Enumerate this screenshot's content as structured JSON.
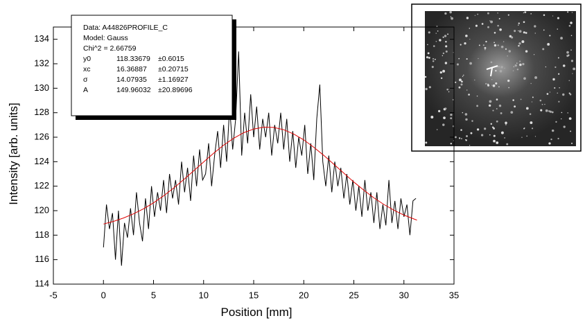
{
  "chart_data": {
    "type": "line",
    "xlabel": "Position [mm]",
    "ylabel": "Intensity [arb. units]",
    "xlim": [
      -5,
      35
    ],
    "xticks": [
      -5,
      0,
      5,
      10,
      15,
      20,
      25,
      30,
      35
    ],
    "ylim": [
      114,
      135
    ],
    "yticks": [
      114,
      116,
      118,
      120,
      122,
      124,
      126,
      128,
      130,
      132,
      134
    ],
    "series": [
      {
        "color": "#000000",
        "x": [
          0,
          0.3,
          0.6,
          0.9,
          1.2,
          1.5,
          1.8,
          2.1,
          2.4,
          2.7,
          3.0,
          3.3,
          3.6,
          3.9,
          4.2,
          4.5,
          4.8,
          5.1,
          5.4,
          5.7,
          6.0,
          6.3,
          6.6,
          6.9,
          7.2,
          7.5,
          7.8,
          8.1,
          8.4,
          8.7,
          9.0,
          9.3,
          9.6,
          9.9,
          10.2,
          10.5,
          10.8,
          11.1,
          11.4,
          11.7,
          12.0,
          12.3,
          12.6,
          12.9,
          13.2,
          13.5,
          13.8,
          14.1,
          14.4,
          14.7,
          15.0,
          15.3,
          15.6,
          15.9,
          16.2,
          16.5,
          16.8,
          17.1,
          17.4,
          17.7,
          18.0,
          18.3,
          18.6,
          18.9,
          19.2,
          19.5,
          19.8,
          20.1,
          20.4,
          20.7,
          21.0,
          21.3,
          21.6,
          21.9,
          22.2,
          22.5,
          22.8,
          23.1,
          23.4,
          23.7,
          24.0,
          24.3,
          24.6,
          24.9,
          25.2,
          25.5,
          25.8,
          26.1,
          26.4,
          26.7,
          27.0,
          27.3,
          27.6,
          27.9,
          28.2,
          28.5,
          28.8,
          29.1,
          29.4,
          29.7,
          30.0,
          30.3,
          30.6,
          30.9,
          31.2
        ],
        "values": [
          117.0,
          120.5,
          118.5,
          119.8,
          116.0,
          120.0,
          115.5,
          119.0,
          117.8,
          120.2,
          118.0,
          121.5,
          119.0,
          117.5,
          121.0,
          118.5,
          122.0,
          119.5,
          121.5,
          120.0,
          122.5,
          119.8,
          123.0,
          121.0,
          122.5,
          120.5,
          124.0,
          121.5,
          123.5,
          120.8,
          124.5,
          122.0,
          125.0,
          122.5,
          123.0,
          125.5,
          122.0,
          124.5,
          126.5,
          123.5,
          127.0,
          124.0,
          128.5,
          125.0,
          127.5,
          133.0,
          124.5,
          128.0,
          125.5,
          129.5,
          126.0,
          128.5,
          125.0,
          127.5,
          126.0,
          128.0,
          124.5,
          127.0,
          125.5,
          128.0,
          125.0,
          127.5,
          124.0,
          126.5,
          123.5,
          126.0,
          124.5,
          127.0,
          123.0,
          125.5,
          122.5,
          127.5,
          130.3,
          124.0,
          122.0,
          124.5,
          121.5,
          124.0,
          122.0,
          123.5,
          121.0,
          123.0,
          120.5,
          122.5,
          120.0,
          122.0,
          119.5,
          122.5,
          120.0,
          121.5,
          119.0,
          121.5,
          118.5,
          120.5,
          118.8,
          122.5,
          119.0,
          120.8,
          118.5,
          121.0,
          119.5,
          120.5,
          118.0,
          120.8,
          121.0
        ]
      },
      {
        "color": "#e00000",
        "x": [
          0,
          1,
          2,
          3,
          4,
          5,
          6,
          7,
          8,
          9,
          10,
          11,
          12,
          13,
          14,
          15,
          16,
          17,
          18,
          19,
          20,
          21,
          22,
          23,
          24,
          25,
          26,
          27,
          28,
          29,
          30,
          31,
          31.3
        ],
        "values": [
          118.91,
          119.12,
          119.4,
          119.74,
          120.15,
          120.64,
          121.21,
          121.84,
          122.53,
          123.25,
          123.98,
          124.69,
          125.35,
          125.91,
          126.37,
          126.67,
          126.82,
          126.8,
          126.61,
          126.26,
          125.78,
          125.18,
          124.51,
          123.79,
          123.06,
          122.34,
          121.67,
          121.05,
          120.51,
          120.04,
          119.64,
          119.32,
          119.23
        ]
      }
    ],
    "fit_box": {
      "lines": [
        "Data: A44826PROFILE_C",
        "Model: Gauss",
        "Chi^2 = 2.66759"
      ],
      "rows": [
        [
          "y0",
          "118.33679",
          "±0.6015"
        ],
        [
          "xc",
          "16.36887",
          "±0.20715"
        ],
        [
          "σ",
          "14.07935",
          "±1.16927"
        ],
        [
          "A",
          "149.96032",
          "±20.89696"
        ]
      ]
    }
  }
}
